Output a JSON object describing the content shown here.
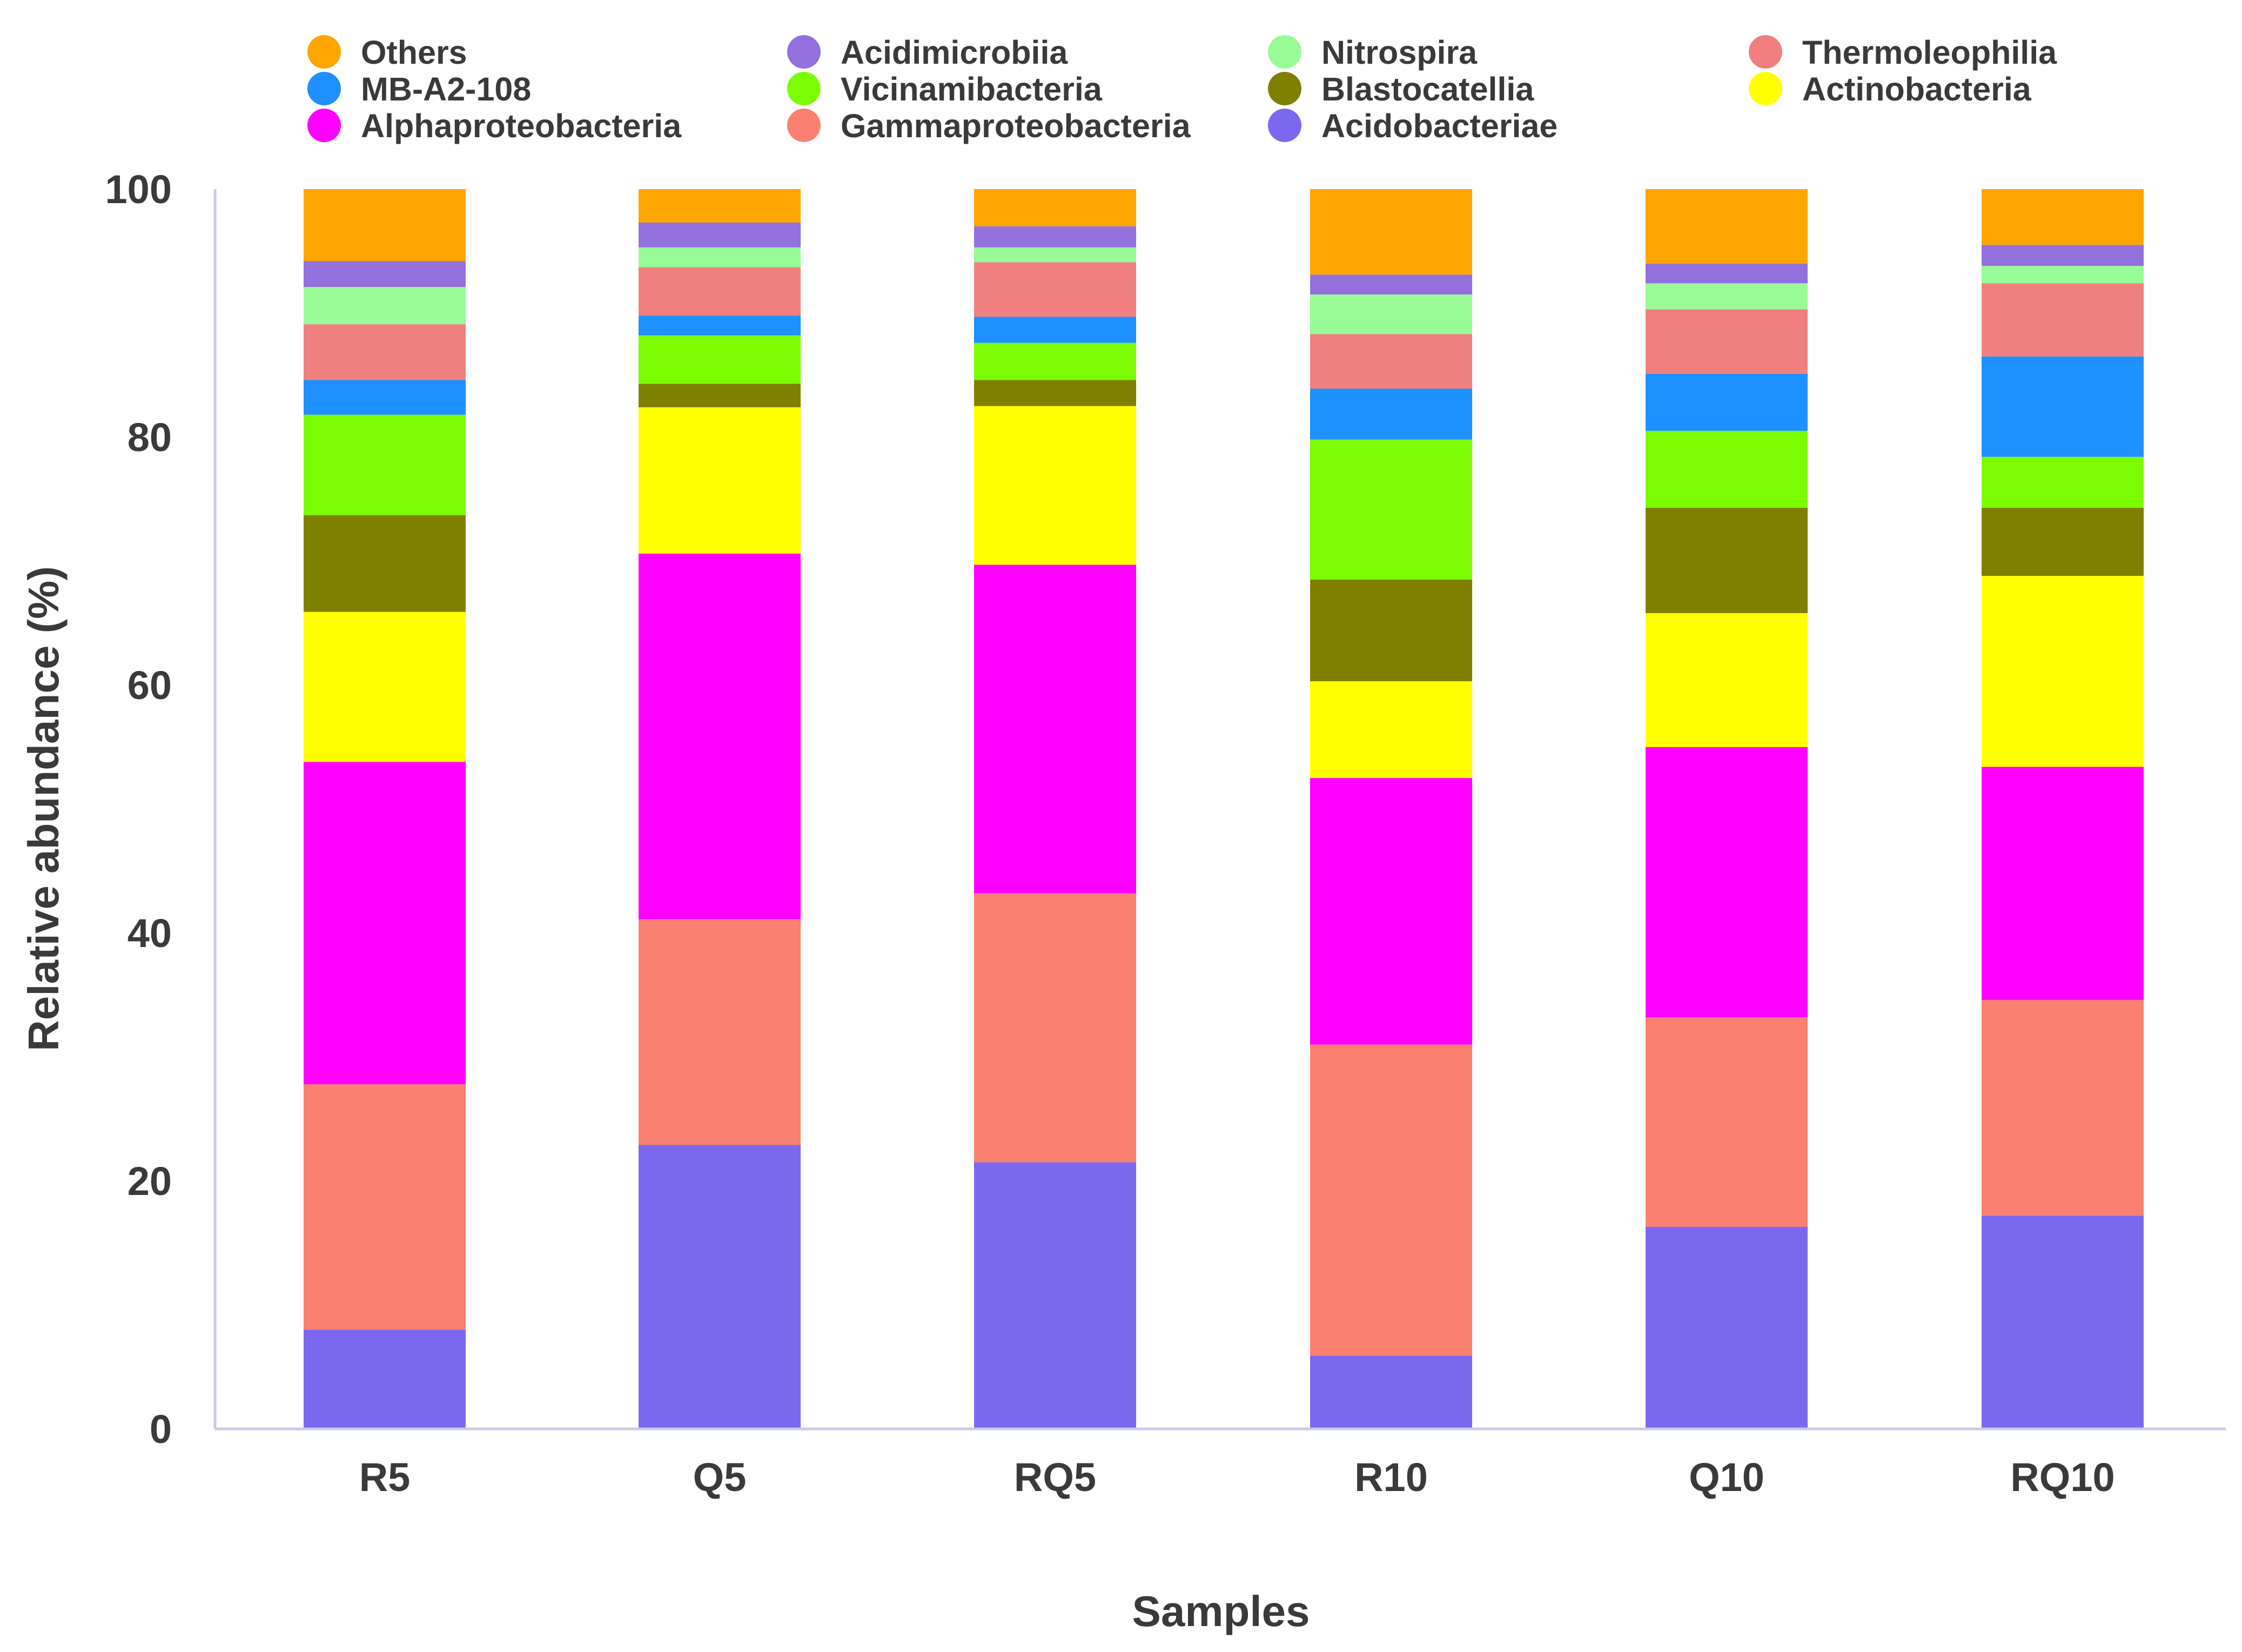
{
  "chart_data": {
    "type": "bar",
    "stacked": true,
    "title": "",
    "xlabel": "Samples",
    "ylabel": "Relative abundance (%)",
    "ylim": [
      0,
      100
    ],
    "yticks": [
      "0",
      "20",
      "40",
      "60",
      "80",
      "100"
    ],
    "grid": false,
    "legend_position": "top",
    "categories": [
      "R5",
      "Q5",
      "RQ5",
      "R10",
      "Q10",
      "RQ10"
    ],
    "series": [
      {
        "name": "Acidobacteriae",
        "color": "#7B68EE",
        "values": [
          8.0,
          22.9,
          21.5,
          5.9,
          16.3,
          17.2
        ]
      },
      {
        "name": "Gammaproteobacteria",
        "color": "#FA8072",
        "values": [
          19.8,
          18.2,
          21.7,
          25.1,
          16.9,
          17.4
        ]
      },
      {
        "name": "Alphaproteobacteria",
        "color": "#FF00FF",
        "values": [
          26.0,
          29.5,
          26.5,
          21.5,
          21.8,
          18.8
        ]
      },
      {
        "name": "Actinobacteria",
        "color": "#FFFF00",
        "values": [
          12.1,
          11.8,
          12.8,
          7.8,
          10.8,
          15.4
        ]
      },
      {
        "name": "Blastocatellia",
        "color": "#808000",
        "values": [
          7.8,
          1.9,
          2.1,
          8.2,
          8.5,
          5.5
        ]
      },
      {
        "name": "Vicinamibacteria",
        "color": "#7CFC00",
        "values": [
          8.1,
          3.9,
          3.0,
          11.3,
          6.2,
          4.1
        ]
      },
      {
        "name": "MB-A2-108",
        "color": "#1E90FF",
        "values": [
          2.8,
          1.6,
          2.1,
          4.1,
          4.6,
          8.1
        ]
      },
      {
        "name": "Thermoleophilia",
        "color": "#F08080",
        "values": [
          4.5,
          3.9,
          4.4,
          4.4,
          5.2,
          5.9
        ]
      },
      {
        "name": "Nitrospira",
        "color": "#98FB98",
        "values": [
          3.0,
          1.6,
          1.2,
          3.2,
          2.1,
          1.4
        ]
      },
      {
        "name": "Acidimicrobiia",
        "color": "#9370DB",
        "values": [
          2.1,
          2.0,
          1.7,
          1.6,
          1.6,
          1.7
        ]
      },
      {
        "name": "Others",
        "color": "#FFA500",
        "values": [
          5.8,
          2.9,
          3.2,
          6.9,
          6.0,
          4.5
        ]
      }
    ],
    "legend_order": [
      "Others",
      "Acidimicrobiia",
      "Nitrospira",
      "Thermoleophilia",
      "MB-A2-108",
      "Vicinamibacteria",
      "Blastocatellia",
      "Actinobacteria",
      "Alphaproteobacteria",
      "Gammaproteobacteria",
      "Acidobacteriae"
    ]
  }
}
